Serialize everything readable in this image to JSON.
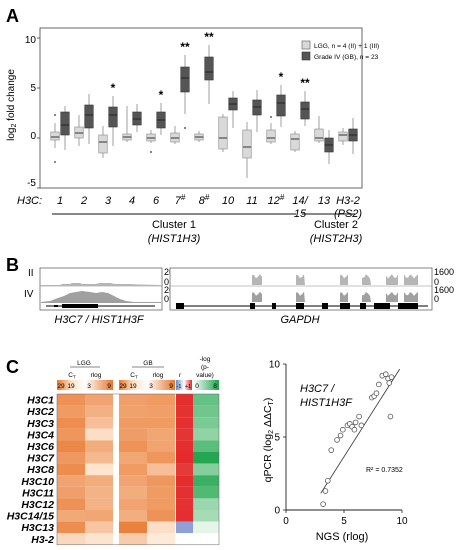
{
  "panels": {
    "a": {
      "letter": "A",
      "ylabel_log": "log",
      "ylabel_sub": "2",
      "ylabel_rest": " fold change",
      "y_ticks": [
        "10",
        "5",
        "0",
        "-5"
      ],
      "row_label": "H3C:",
      "legend": {
        "lgg": "LGG, n = 4 (II) + 1 (III)",
        "gb": "Grade IV (GB), n = 23",
        "lgg_color": "#d9d9d9",
        "gb_color": "#555555"
      },
      "x_labels": [
        "1",
        "2",
        "3",
        "4",
        "6",
        "7#",
        "8#",
        "10",
        "11",
        "12#",
        "14/",
        "13",
        "H3-2"
      ],
      "x_labels_second": {
        "10": "15",
        "12": "(PS2)"
      },
      "cluster1": {
        "name": "Cluster 1",
        "gene": "(HIST1H3)"
      },
      "cluster2": {
        "name": "Cluster 2",
        "gene": "(HIST2H3)"
      }
    },
    "b": {
      "letter": "B",
      "row_ii": "II",
      "row_iv": "IV",
      "left_scale_top": "20",
      "left_scale_zero": "0",
      "left_scale_top2": "20",
      "left_scale_zero2": "0",
      "right_scale_top": "1600",
      "right_scale_zero": "0",
      "right_scale_top2": "1600",
      "right_scale_zero2": "0",
      "left_gene": "H3C7 / HIST1H3F",
      "right_gene": "GAPDH"
    },
    "c": {
      "letter": "C",
      "heat_header": {
        "lgg": "LGG",
        "gb": "GB",
        "ct": "C",
        "ct_sub": "T",
        "rlog": "rlog",
        "r": "r",
        "neglog1": "-log",
        "neglog2": "(p-",
        "neglog3": "value)"
      },
      "scale_labels": [
        "29",
        "19",
        "3",
        "9",
        "29",
        "19",
        "3",
        "9",
        "-1",
        "+1",
        "0",
        "8"
      ],
      "scatter_title1": "H3C7 /",
      "scatter_title2": "HIST1H3F",
      "scatter_ylabel": "qPCR (log",
      "scatter_ylabel_sub": "2",
      "scatter_ylabel_rest": " ΔΔC",
      "scatter_ylabel_sub2": "T",
      "scatter_ylabel_end": ")",
      "scatter_xlabel": "NGS (rlog)",
      "r2": "R² = 0.7352"
    }
  },
  "chart_data": [
    {
      "type": "box",
      "title": "",
      "ylabel": "log2 fold change",
      "ylim": [
        -5,
        11
      ],
      "categories": [
        "1",
        "2",
        "3",
        "4",
        "6",
        "7#",
        "8#",
        "10",
        "11",
        "12#",
        "14/15",
        "13",
        "H3-2 (PS2)"
      ],
      "significance": [
        "",
        "",
        "*",
        "",
        "*",
        "**",
        "**",
        "",
        "",
        "*",
        "**",
        "",
        ""
      ],
      "series": [
        {
          "name": "LGG, n = 4 (II) + 1 (III)",
          "color": "#d9d9d9",
          "boxes": [
            {
              "min": -1.0,
              "q1": -0.2,
              "median": 0.1,
              "q3": 0.6,
              "max": 1.5,
              "outliers": [
                2.3,
                -2.4
              ]
            },
            {
              "min": -0.8,
              "q1": 0.0,
              "median": 0.5,
              "q3": 1.1,
              "max": 2.3,
              "outliers": []
            },
            {
              "min": -2.0,
              "q1": -1.5,
              "median": -0.4,
              "q3": 0.3,
              "max": 1.2,
              "outliers": []
            },
            {
              "min": -0.4,
              "q1": -0.2,
              "median": 0.1,
              "q3": 0.4,
              "max": 3.2,
              "outliers": []
            },
            {
              "min": -0.5,
              "q1": -0.3,
              "median": 0.0,
              "q3": 0.4,
              "max": 0.8,
              "outliers": [
                -1.4
              ]
            },
            {
              "min": -0.6,
              "q1": -0.4,
              "median": 0.0,
              "q3": 0.5,
              "max": 1.2,
              "outliers": []
            },
            {
              "min": -0.4,
              "q1": -0.2,
              "median": 0.1,
              "q3": 0.4,
              "max": 0.7,
              "outliers": []
            },
            {
              "min": -1.4,
              "q1": -1.1,
              "median": 0.0,
              "q3": 2.1,
              "max": 2.4,
              "outliers": []
            },
            {
              "min": -4.0,
              "q1": -2.0,
              "median": -0.9,
              "q3": 0.8,
              "max": 1.6,
              "outliers": []
            },
            {
              "min": -0.6,
              "q1": -0.4,
              "median": 0.0,
              "q3": 0.8,
              "max": 1.5,
              "outliers": [
                2.1
              ]
            },
            {
              "min": -1.4,
              "q1": -1.2,
              "median": -0.1,
              "q3": 0.4,
              "max": 0.7,
              "outliers": []
            },
            {
              "min": -0.5,
              "q1": -0.3,
              "median": 0.0,
              "q3": 0.9,
              "max": 2.2,
              "outliers": []
            },
            {
              "min": -0.7,
              "q1": -0.3,
              "median": 0.3,
              "q3": 0.6,
              "max": 1.0,
              "outliers": []
            }
          ]
        },
        {
          "name": "Grade IV (GB), n = 23",
          "color": "#555555",
          "boxes": [
            {
              "min": -1.2,
              "q1": 0.3,
              "median": 1.3,
              "q3": 2.6,
              "max": 3.2,
              "outliers": []
            },
            {
              "min": -0.6,
              "q1": 1.0,
              "median": 2.3,
              "q3": 3.3,
              "max": 4.4,
              "outliers": []
            },
            {
              "min": -0.8,
              "q1": 1.1,
              "median": 2.3,
              "q3": 3.1,
              "max": 4.2,
              "outliers": []
            },
            {
              "min": 0.6,
              "q1": 1.3,
              "median": 1.9,
              "q3": 2.6,
              "max": 3.4,
              "outliers": []
            },
            {
              "min": 0.3,
              "q1": 1.0,
              "median": 1.8,
              "q3": 2.6,
              "max": 3.5,
              "outliers": []
            },
            {
              "min": 2.4,
              "q1": 4.6,
              "median": 6.0,
              "q3": 7.1,
              "max": 8.3,
              "outliers": [
                1.0
              ]
            },
            {
              "min": 3.4,
              "q1": 5.8,
              "median": 6.6,
              "q3": 8.1,
              "max": 9.3,
              "outliers": []
            },
            {
              "min": 1.0,
              "q1": 2.8,
              "median": 3.4,
              "q3": 4.0,
              "max": 4.7,
              "outliers": []
            },
            {
              "min": 0.6,
              "q1": 2.3,
              "median": 3.1,
              "q3": 3.8,
              "max": 4.8,
              "outliers": []
            },
            {
              "min": 1.1,
              "q1": 2.2,
              "median": 3.5,
              "q3": 4.3,
              "max": 5.3,
              "outliers": []
            },
            {
              "min": 1.2,
              "q1": 1.9,
              "median": 2.9,
              "q3": 3.6,
              "max": 4.7,
              "outliers": []
            },
            {
              "min": -2.6,
              "q1": -1.4,
              "median": -0.7,
              "q3": 0.0,
              "max": 0.8,
              "outliers": []
            },
            {
              "min": -1.6,
              "q1": -0.3,
              "median": 0.3,
              "q3": 0.9,
              "max": 2.0,
              "outliers": []
            }
          ]
        }
      ]
    },
    {
      "type": "heatmap",
      "title": "",
      "rows": [
        "H3C1",
        "H3C2",
        "H3C3",
        "H3C4",
        "H3C6",
        "H3C7",
        "H3C8",
        "H3C10",
        "H3C11",
        "H3C12",
        "H3C14/15",
        "H3C13",
        "H3-2"
      ],
      "columns": [
        "LGG CT",
        "LGG rlog",
        "GB CT",
        "GB rlog",
        "r",
        "-log(p-value)"
      ],
      "values": [
        [
          0.78,
          0.62,
          0.66,
          0.7,
          0.95,
          0.65
        ],
        [
          0.7,
          0.52,
          0.64,
          0.66,
          0.92,
          0.6
        ],
        [
          0.8,
          0.4,
          0.7,
          0.7,
          0.93,
          0.55
        ],
        [
          0.74,
          0.15,
          0.68,
          0.6,
          0.9,
          0.45
        ],
        [
          0.85,
          0.55,
          0.76,
          0.62,
          0.95,
          0.7
        ],
        [
          0.72,
          0.45,
          0.6,
          0.74,
          0.98,
          0.95
        ],
        [
          0.82,
          0.1,
          0.7,
          0.4,
          0.85,
          0.5
        ],
        [
          0.62,
          0.55,
          0.62,
          0.72,
          0.96,
          0.85
        ],
        [
          0.66,
          0.5,
          0.55,
          0.7,
          0.93,
          0.75
        ],
        [
          0.78,
          0.5,
          0.62,
          0.7,
          0.92,
          0.4
        ],
        [
          0.58,
          0.6,
          0.54,
          0.76,
          0.95,
          0.35
        ],
        [
          0.8,
          0.35,
          0.9,
          0.15,
          0.1,
          0.05
        ],
        [
          0.2,
          0.1,
          0.3,
          0.05,
          0.55,
          0.0
        ]
      ]
    },
    {
      "type": "scatter",
      "title": "H3C7 / HIST1H3F",
      "xlabel": "NGS (rlog)",
      "ylabel": "qPCR (log2 ΔΔCT)",
      "xlim": [
        0,
        10
      ],
      "ylim": [
        0,
        10
      ],
      "x": [
        3.2,
        3.4,
        3.6,
        4.4,
        4.7,
        4.9,
        5.3,
        5.5,
        5.7,
        5.9,
        6.0,
        6.3,
        6.5,
        7.4,
        7.6,
        7.8,
        8.0,
        8.3,
        8.6,
        8.8,
        8.9,
        9.1,
        9.0,
        3.9
      ],
      "y": [
        0.4,
        1.3,
        2.0,
        4.8,
        5.1,
        5.5,
        5.8,
        5.9,
        5.7,
        5.5,
        6.0,
        6.4,
        5.8,
        7.7,
        7.8,
        8.0,
        8.6,
        9.2,
        9.3,
        9.0,
        8.7,
        9.1,
        6.4,
        4.1
      ],
      "fit": {
        "slope": 1.25,
        "intercept": -2.6,
        "r2": 0.7352
      }
    }
  ]
}
